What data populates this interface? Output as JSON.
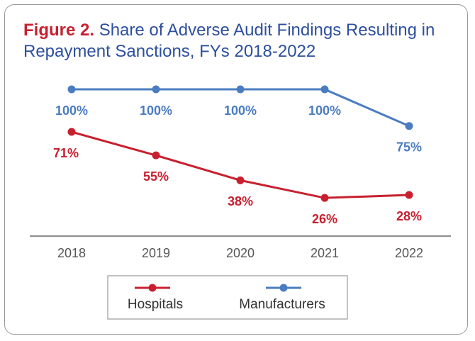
{
  "chart_data": {
    "type": "line",
    "figure_label": "Figure 2.",
    "title": "Share of Adverse Audit Findings Resulting in Repayment Sanctions, FYs 2018-2022",
    "categories": [
      "2018",
      "2019",
      "2020",
      "2021",
      "2022"
    ],
    "series": [
      {
        "name": "Hospitals",
        "color": "#c8202f",
        "values": [
          71,
          55,
          38,
          26,
          28
        ],
        "value_labels": [
          "71%",
          "55%",
          "38%",
          "26%",
          "28%"
        ]
      },
      {
        "name": "Manufacturers",
        "color": "#4a7cc1",
        "values": [
          100,
          100,
          100,
          100,
          75
        ],
        "value_labels": [
          "100%",
          "100%",
          "100%",
          "100%",
          "75%"
        ]
      }
    ]
  }
}
